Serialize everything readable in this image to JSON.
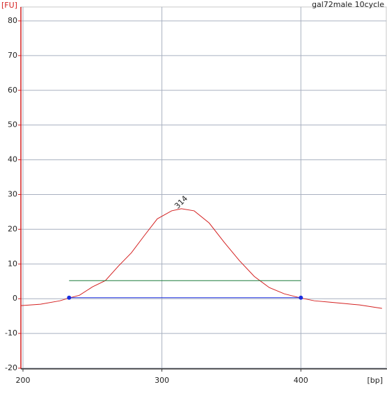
{
  "chart_data": {
    "type": "line",
    "title": "gal72male 10cycle",
    "ylabel": "[FU]",
    "xlabel": "[bp]",
    "xlim": [
      198.5,
      462
    ],
    "ylim": [
      -20.2,
      84
    ],
    "xticks": [
      200,
      300,
      400
    ],
    "yticks": [
      -20,
      -10,
      0,
      10,
      20,
      30,
      40,
      50,
      60,
      70,
      80
    ],
    "grid": true,
    "series": [
      {
        "color": "#d42020",
        "x": [
          198.6,
          212.6,
          226.6,
          233.2,
          240.7,
          250,
          259.3,
          268.7,
          278,
          287.4,
          296.7,
          307,
          314,
          323.2,
          334,
          344.9,
          355.7,
          366.5,
          377.3,
          388.1,
          400,
          409.7,
          420.5,
          431.4,
          442.2,
          458.4
        ],
        "values": [
          -2,
          -1.6,
          -0.6,
          0.2,
          1,
          3.4,
          5.2,
          9.4,
          13.2,
          18.2,
          23,
          25.3,
          25.9,
          25.3,
          21.8,
          16.2,
          11,
          6.4,
          3.2,
          1.4,
          0.2,
          -0.6,
          -1,
          -1.4,
          -1.8,
          -2.8
        ]
      },
      {
        "color": "#1a7a3a",
        "x": [
          233.2,
          400
        ],
        "values": [
          5.2,
          5.2
        ]
      },
      {
        "color": "#1a2ee0",
        "x": [
          233.2,
          400
        ],
        "values": [
          0.3,
          0.3
        ],
        "markers": true
      }
    ],
    "annotations": [
      {
        "label": "314",
        "x": 314,
        "y": 25.9
      }
    ]
  }
}
